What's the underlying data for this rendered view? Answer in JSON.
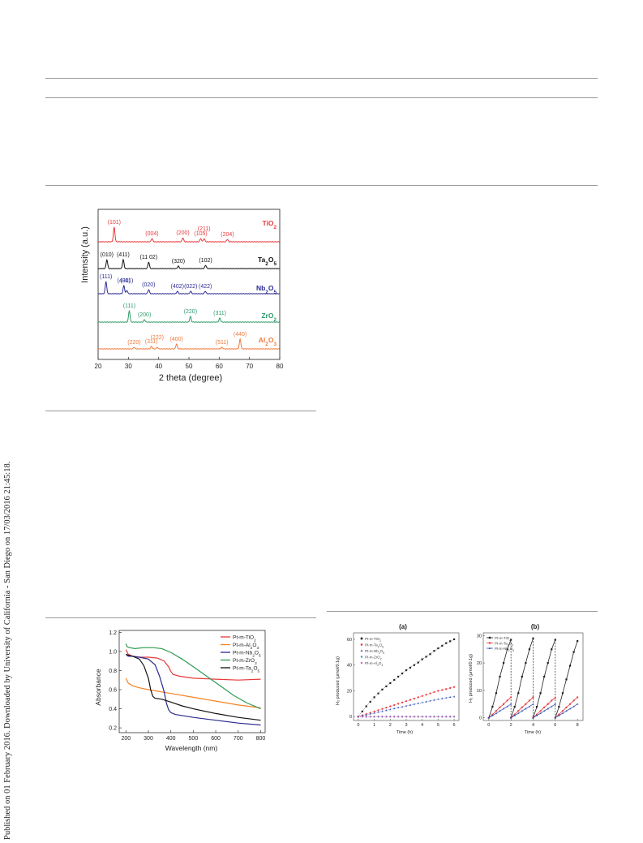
{
  "side_note": "Published on 01 February 2016. Downloaded by University of California - San Diego on 17/03/2016 21:45:18.",
  "chart_data": [
    {
      "type": "line",
      "xlabel": "2 theta (degree)",
      "ylabel": "Intensity (a.u.)",
      "xlim": [
        20,
        80
      ],
      "x_ticks": [
        "20",
        "30",
        "40",
        "50",
        "60",
        "70",
        "80"
      ],
      "series": [
        {
          "name": "TiO₂",
          "color": "#e8383a",
          "peaks": [
            {
              "x": 25.3,
              "label": "(101)",
              "h": 18
            },
            {
              "x": 37.8,
              "label": "(004)",
              "h": 4
            },
            {
              "x": 48.0,
              "label": "(200)",
              "h": 5
            },
            {
              "x": 53.9,
              "label": "(105)",
              "h": 4
            },
            {
              "x": 55.0,
              "label": "(211)",
              "h": 4
            },
            {
              "x": 62.7,
              "label": "(204)",
              "h": 3
            }
          ]
        },
        {
          "name": "Ta₂O₅",
          "color": "#111111",
          "peaks": [
            {
              "x": 22.9,
              "label": "(010)",
              "h": 11
            },
            {
              "x": 28.3,
              "label": "(411)",
              "h": 11
            },
            {
              "x": 36.7,
              "label": "(11 02)",
              "h": 8
            },
            {
              "x": 46.5,
              "label": "(320)",
              "h": 3
            },
            {
              "x": 55.5,
              "label": "(102)",
              "h": 4
            }
          ]
        },
        {
          "name": "Nb₂O₅",
          "color": "#2a2a92",
          "peaks": [
            {
              "x": 22.6,
              "label": "(111)",
              "h": 15
            },
            {
              "x": 28.5,
              "label": "(400)",
              "h": 10
            },
            {
              "x": 29.5,
              "label": "(311)",
              "h": 4
            },
            {
              "x": 36.7,
              "label": "(020)",
              "h": 5
            },
            {
              "x": 46.2,
              "label": "(402)",
              "h": 3
            },
            {
              "x": 50.6,
              "label": "(022)",
              "h": 3
            },
            {
              "x": 55.4,
              "label": "(422)",
              "h": 3
            }
          ]
        },
        {
          "name": "ZrO₂",
          "color": "#2e9a6a",
          "peaks": [
            {
              "x": 30.3,
              "label": "(111)",
              "h": 14
            },
            {
              "x": 35.3,
              "label": "(200)",
              "h": 3
            },
            {
              "x": 50.5,
              "label": "(220)",
              "h": 7
            },
            {
              "x": 60.2,
              "label": "(311)",
              "h": 5
            }
          ]
        },
        {
          "name": "Al₂O₃",
          "color": "#f07a3a",
          "peaks": [
            {
              "x": 31.9,
              "label": "(220)",
              "h": 2
            },
            {
              "x": 37.6,
              "label": "(311)",
              "h": 3
            },
            {
              "x": 39.5,
              "label": "(222)",
              "h": 2
            },
            {
              "x": 45.9,
              "label": "(400)",
              "h": 6
            },
            {
              "x": 60.9,
              "label": "(511)",
              "h": 2
            },
            {
              "x": 66.9,
              "label": "(440)",
              "h": 12
            }
          ]
        }
      ]
    },
    {
      "type": "line",
      "xlabel": "Wavelength (nm)",
      "ylabel": "Absorbance",
      "xlim": [
        200,
        800
      ],
      "ylim": [
        0.2,
        1.2
      ],
      "x_ticks": [
        "200",
        "300",
        "400",
        "500",
        "600",
        "700",
        "800"
      ],
      "y_ticks": [
        "0.2",
        "0.4",
        "0.6",
        "0.8",
        "1.0",
        "1.2"
      ],
      "series": [
        {
          "name": "Pt-m-TiO₂",
          "color": "#e8383a",
          "x": [
            200,
            210,
            230,
            260,
            300,
            340,
            370,
            390,
            400,
            410,
            440,
            500,
            600,
            700,
            800
          ],
          "y": [
            1.02,
            0.97,
            0.95,
            0.94,
            0.94,
            0.93,
            0.9,
            0.84,
            0.79,
            0.76,
            0.74,
            0.72,
            0.71,
            0.7,
            0.71
          ]
        },
        {
          "name": "Pt-m-Al₂O₃",
          "color": "#f58220",
          "x": [
            200,
            210,
            230,
            260,
            300,
            400,
            500,
            600,
            700,
            800
          ],
          "y": [
            0.72,
            0.67,
            0.64,
            0.62,
            0.6,
            0.56,
            0.52,
            0.48,
            0.44,
            0.41
          ]
        },
        {
          "name": "Pt-m-Nb₂O₅",
          "color": "#2a2a92",
          "x": [
            200,
            210,
            230,
            260,
            300,
            330,
            350,
            370,
            380,
            390,
            400,
            420,
            500,
            600,
            700,
            800
          ],
          "y": [
            0.97,
            0.95,
            0.95,
            0.94,
            0.92,
            0.86,
            0.74,
            0.58,
            0.46,
            0.39,
            0.36,
            0.34,
            0.31,
            0.28,
            0.25,
            0.23
          ]
        },
        {
          "name": "Pt-m-ZrO₂",
          "color": "#2e9a52",
          "x": [
            200,
            205,
            215,
            240,
            280,
            320,
            360,
            400,
            450,
            500,
            560,
            620,
            680,
            740,
            800
          ],
          "y": [
            1.08,
            1.05,
            1.04,
            1.03,
            1.04,
            1.04,
            1.03,
            0.99,
            0.92,
            0.84,
            0.74,
            0.64,
            0.54,
            0.46,
            0.4
          ]
        },
        {
          "name": "Pt-m-Ta₂O₅",
          "color": "#111111",
          "x": [
            200,
            210,
            230,
            260,
            280,
            300,
            310,
            320,
            330,
            360,
            400,
            450,
            500,
            600,
            700,
            800
          ],
          "y": [
            0.97,
            0.96,
            0.95,
            0.92,
            0.85,
            0.72,
            0.6,
            0.53,
            0.51,
            0.5,
            0.47,
            0.43,
            0.4,
            0.35,
            0.31,
            0.28
          ]
        }
      ]
    },
    {
      "type": "line",
      "panel": "(a)",
      "xlabel": "Time (h)",
      "ylabel": "H₂ produced (μmol/0.1g)",
      "xlim": [
        0,
        6
      ],
      "ylim": [
        0,
        65
      ],
      "x_ticks": [
        "0",
        "1",
        "2",
        "3",
        "4",
        "5",
        "6"
      ],
      "y_ticks": [
        "0",
        "20",
        "40",
        "60"
      ],
      "series": [
        {
          "name": "Pt-m-TiO₂",
          "color": "#222222",
          "marker": "square",
          "x": [
            0,
            0.25,
            0.5,
            0.75,
            1,
            1.25,
            1.5,
            1.75,
            2,
            2.25,
            2.5,
            2.75,
            3,
            3.25,
            3.5,
            3.75,
            4,
            4.25,
            4.5,
            4.75,
            5,
            5.25,
            5.5,
            5.75,
            6
          ],
          "y": [
            0,
            4,
            8,
            11.5,
            15,
            18,
            21,
            23.5,
            26,
            28.5,
            31,
            33.5,
            36,
            38,
            40,
            42,
            44.5,
            46.5,
            48.5,
            51,
            53,
            55,
            57,
            58.5,
            60
          ]
        },
        {
          "name": "Pt-m-Ta₂O₅",
          "color": "#e8383a",
          "marker": "circle",
          "x": [
            0,
            0.25,
            0.5,
            0.75,
            1,
            1.25,
            1.5,
            1.75,
            2,
            2.25,
            2.5,
            2.75,
            3,
            3.25,
            3.5,
            3.75,
            4,
            4.25,
            4.5,
            4.75,
            5,
            5.25,
            5.5,
            5.75,
            6
          ],
          "y": [
            0,
            1,
            2,
            3,
            4,
            5,
            6,
            7,
            8,
            9,
            10,
            11,
            12,
            13,
            14,
            15,
            16,
            17,
            18,
            19,
            20,
            20.7,
            21.4,
            22.2,
            23
          ]
        },
        {
          "name": "Pt-m-Nb₂O₅",
          "color": "#3a5ab8",
          "marker": "triangle",
          "x": [
            0,
            0.25,
            0.5,
            0.75,
            1,
            1.25,
            1.5,
            1.75,
            2,
            2.25,
            2.5,
            2.75,
            3,
            3.25,
            3.5,
            3.75,
            4,
            4.25,
            4.5,
            4.75,
            5,
            5.25,
            5.5,
            5.75,
            6
          ],
          "y": [
            0,
            0.7,
            1.4,
            2.1,
            2.8,
            3.5,
            4.2,
            4.9,
            5.6,
            6.3,
            7,
            7.6,
            8.3,
            9,
            9.7,
            10.3,
            11,
            11.6,
            12.3,
            12.9,
            13.5,
            14.1,
            14.6,
            15.1,
            15.6
          ]
        },
        {
          "name": "Pt-m-ZrO₂",
          "color": "#2a9ab0",
          "marker": "diamond",
          "x": [
            0,
            0.25,
            0.5,
            0.75,
            1,
            1.25,
            1.5,
            1.75,
            2,
            2.25,
            2.5,
            2.75,
            3,
            3.25,
            3.5,
            3.75,
            4,
            4.25,
            4.5,
            4.75,
            5,
            5.25,
            5.5,
            5.75,
            6
          ],
          "y": [
            0,
            0,
            0,
            0,
            0,
            0,
            0,
            0,
            0,
            0,
            0,
            0,
            0,
            0,
            0,
            0,
            0,
            0,
            0,
            0,
            0,
            0,
            0,
            0,
            0
          ]
        },
        {
          "name": "Pt-m-Al₂O₃",
          "color": "#b454b4",
          "marker": "star",
          "x": [
            0,
            0.25,
            0.5,
            0.75,
            1,
            1.25,
            1.5,
            1.75,
            2,
            2.25,
            2.5,
            2.75,
            3,
            3.25,
            3.5,
            3.75,
            4,
            4.25,
            4.5,
            4.75,
            5,
            5.25,
            5.5,
            5.75,
            6
          ],
          "y": [
            0,
            0,
            0,
            0,
            0,
            0,
            0,
            0,
            0,
            0,
            0,
            0,
            0,
            0,
            0,
            0,
            0,
            0,
            0,
            0,
            0,
            0,
            0,
            0,
            0
          ]
        }
      ]
    },
    {
      "type": "line",
      "panel": "(b)",
      "xlabel": "Time (h)",
      "ylabel": "H₂ produced (μmol/0.1g)",
      "xlim": [
        -0.5,
        8.5
      ],
      "ylim": [
        -1,
        31
      ],
      "x_ticks": [
        "0",
        "2",
        "4",
        "6",
        "8"
      ],
      "y_ticks": [
        "0",
        "10",
        "20",
        "30"
      ],
      "series": [
        {
          "name": "Pt-m-TiO₂",
          "color": "#222222",
          "marker": "square",
          "cycles": [
            [
              0,
              4,
              9,
              15,
              20,
              25,
              28.5
            ],
            [
              0,
              4,
              9,
              15,
              20,
              25,
              29
            ],
            [
              0,
              4,
              9,
              15,
              20,
              25,
              28.5
            ],
            [
              0,
              4,
              9,
              14,
              19,
              24,
              28
            ]
          ]
        },
        {
          "name": "Pt-m-Ta₂O₅",
          "color": "#e8383a",
          "marker": "circle",
          "cycles": [
            [
              0,
              1.2,
              2.5,
              3.8,
              5,
              6.3,
              7.5
            ],
            [
              0,
              1.2,
              2.5,
              3.8,
              5,
              6.3,
              7.5
            ],
            [
              0,
              1.2,
              2.5,
              3.8,
              5,
              6.3,
              7.3
            ],
            [
              0,
              1.2,
              2.5,
              3.8,
              5,
              6.3,
              7.5
            ]
          ]
        },
        {
          "name": "Pt-m-Nb₂O₅",
          "color": "#3a5ab8",
          "marker": "triangle",
          "cycles": [
            [
              0,
              0.8,
              1.6,
              2.5,
              3.3,
              4.1,
              5
            ],
            [
              0,
              0.8,
              1.6,
              2.5,
              3.3,
              4.1,
              5
            ],
            [
              0,
              0.8,
              1.6,
              2.5,
              3.3,
              4.1,
              5
            ],
            [
              0,
              0.8,
              1.6,
              2.5,
              3.3,
              4.1,
              5
            ]
          ]
        }
      ]
    }
  ]
}
